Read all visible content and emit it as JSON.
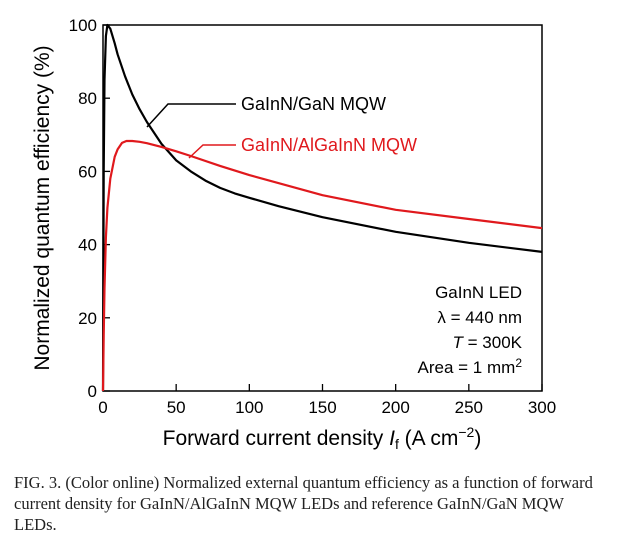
{
  "chart_data": {
    "type": "line",
    "xlabel": "Forward current density I_f (A cm^−2)",
    "xlabel_parts": {
      "prefix": "Forward current density ",
      "var": "I",
      "sub": "f",
      "unit_open": " (A cm",
      "exp": "−2",
      "unit_close": ")"
    },
    "ylabel": "Normalized quantum efficiency (%)",
    "xlim": [
      0,
      300
    ],
    "ylim": [
      0,
      100
    ],
    "xticks": [
      0,
      50,
      100,
      150,
      200,
      250,
      300
    ],
    "yticks": [
      0,
      20,
      40,
      60,
      80,
      100
    ],
    "grid": false,
    "series": [
      {
        "name": "GaInN/GaN MQW",
        "color": "#000000",
        "x": [
          0,
          0.5,
          1,
          2,
          3,
          5,
          8,
          10,
          15,
          20,
          25,
          30,
          40,
          50,
          60,
          70,
          80,
          90,
          100,
          120,
          150,
          200,
          250,
          300
        ],
        "y": [
          0,
          60,
          85,
          97,
          100,
          99,
          95,
          92,
          86,
          81,
          77,
          73.5,
          67.5,
          63,
          60,
          57.5,
          55.5,
          54,
          52.8,
          50.5,
          47.5,
          43.5,
          40.5,
          38
        ]
      },
      {
        "name": "GaInN/AlGaInN MQW",
        "color": "#e0191d",
        "x": [
          0,
          0.5,
          1,
          2,
          3,
          5,
          8,
          10,
          13,
          16,
          20,
          25,
          30,
          40,
          50,
          60,
          80,
          100,
          150,
          200,
          250,
          300
        ],
        "y": [
          0,
          15,
          28,
          42,
          50,
          58,
          64,
          66,
          67.8,
          68.3,
          68.3,
          68.1,
          67.7,
          66.7,
          65.5,
          64.2,
          61.5,
          59,
          53.5,
          49.5,
          47,
          44.5
        ]
      }
    ],
    "annotations": {
      "lines": [
        "GaInN LED",
        "λ = 440 nm",
        "T = 300K",
        "Area = 1 mm²"
      ],
      "structured": {
        "l1": "GaInN LED",
        "l2": "λ = 440 nm",
        "l3_var": "T",
        "l3_rest": " = 300K",
        "l4_base": "Area = 1 mm",
        "l4_sup": "2"
      },
      "placement": "bottom-right"
    },
    "legend_placement": "inline-center"
  },
  "caption": "FIG. 3. (Color online) Normalized external quantum efficiency as a function of forward current density for GaInN/AlGaInN MQW LEDs and reference GaInN/GaN MQW LEDs."
}
